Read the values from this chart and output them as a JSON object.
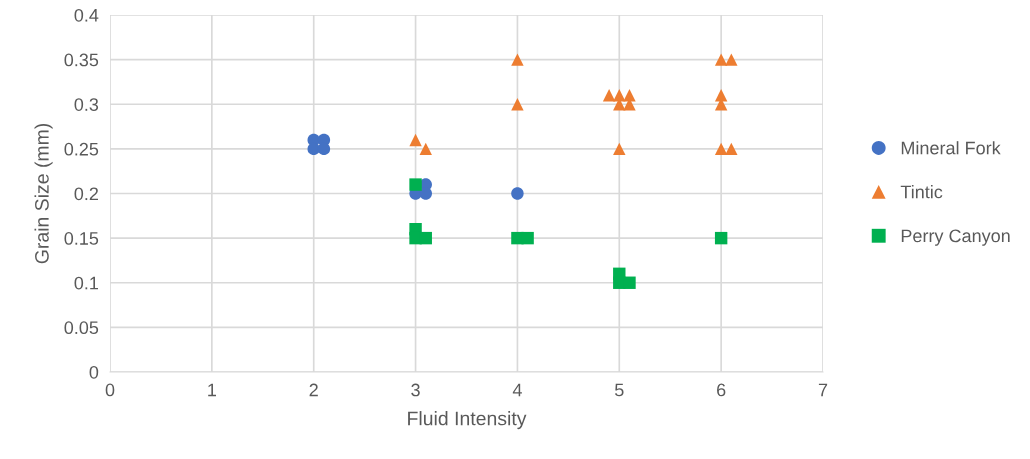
{
  "chart_data": {
    "type": "scatter",
    "xlabel": "Fluid Intensity",
    "ylabel": "Grain Size (mm)",
    "xlim": [
      0,
      7
    ],
    "xticks": [
      0,
      1,
      2,
      3,
      4,
      5,
      6,
      7
    ],
    "ylim": [
      0,
      0.4
    ],
    "yticks": [
      {
        "value": 0,
        "label": "0"
      },
      {
        "value": 0.05,
        "label": "0.05"
      },
      {
        "value": 0.1,
        "label": "0.1"
      },
      {
        "value": 0.15,
        "label": "0.15"
      },
      {
        "value": 0.2,
        "label": "0.2"
      },
      {
        "value": 0.25,
        "label": "0.25"
      },
      {
        "value": 0.3,
        "label": "0.3"
      },
      {
        "value": 0.35,
        "label": "0.35"
      },
      {
        "value": 0.4,
        "label": "0.4"
      }
    ],
    "grid": true,
    "legend": "right",
    "series": [
      {
        "name": "Mineral Fork",
        "color": "#4472c4",
        "marker": "circle",
        "x": [
          2,
          2.1,
          2,
          2.1,
          3,
          3.1,
          3.1,
          4
        ],
        "values": [
          0.26,
          0.26,
          0.25,
          0.25,
          0.2,
          0.21,
          0.2,
          0.2
        ]
      },
      {
        "name": "Tintic",
        "color": "#ed7d31",
        "marker": "triangle",
        "x": [
          3,
          3.1,
          4,
          4,
          4.9,
          5,
          5.1,
          5,
          5.1,
          5,
          6,
          6.1,
          6,
          6,
          6,
          6.1
        ],
        "values": [
          0.26,
          0.25,
          0.35,
          0.3,
          0.31,
          0.31,
          0.31,
          0.3,
          0.3,
          0.25,
          0.35,
          0.35,
          0.31,
          0.3,
          0.25,
          0.25
        ]
      },
      {
        "name": "Perry Canyon",
        "color": "#00b050",
        "marker": "square",
        "x": [
          3,
          3,
          3,
          3.1,
          4,
          4.1,
          5,
          5,
          5.1,
          6
        ],
        "values": [
          0.21,
          0.16,
          0.15,
          0.15,
          0.15,
          0.15,
          0.11,
          0.1,
          0.1,
          0.15
        ]
      }
    ]
  }
}
